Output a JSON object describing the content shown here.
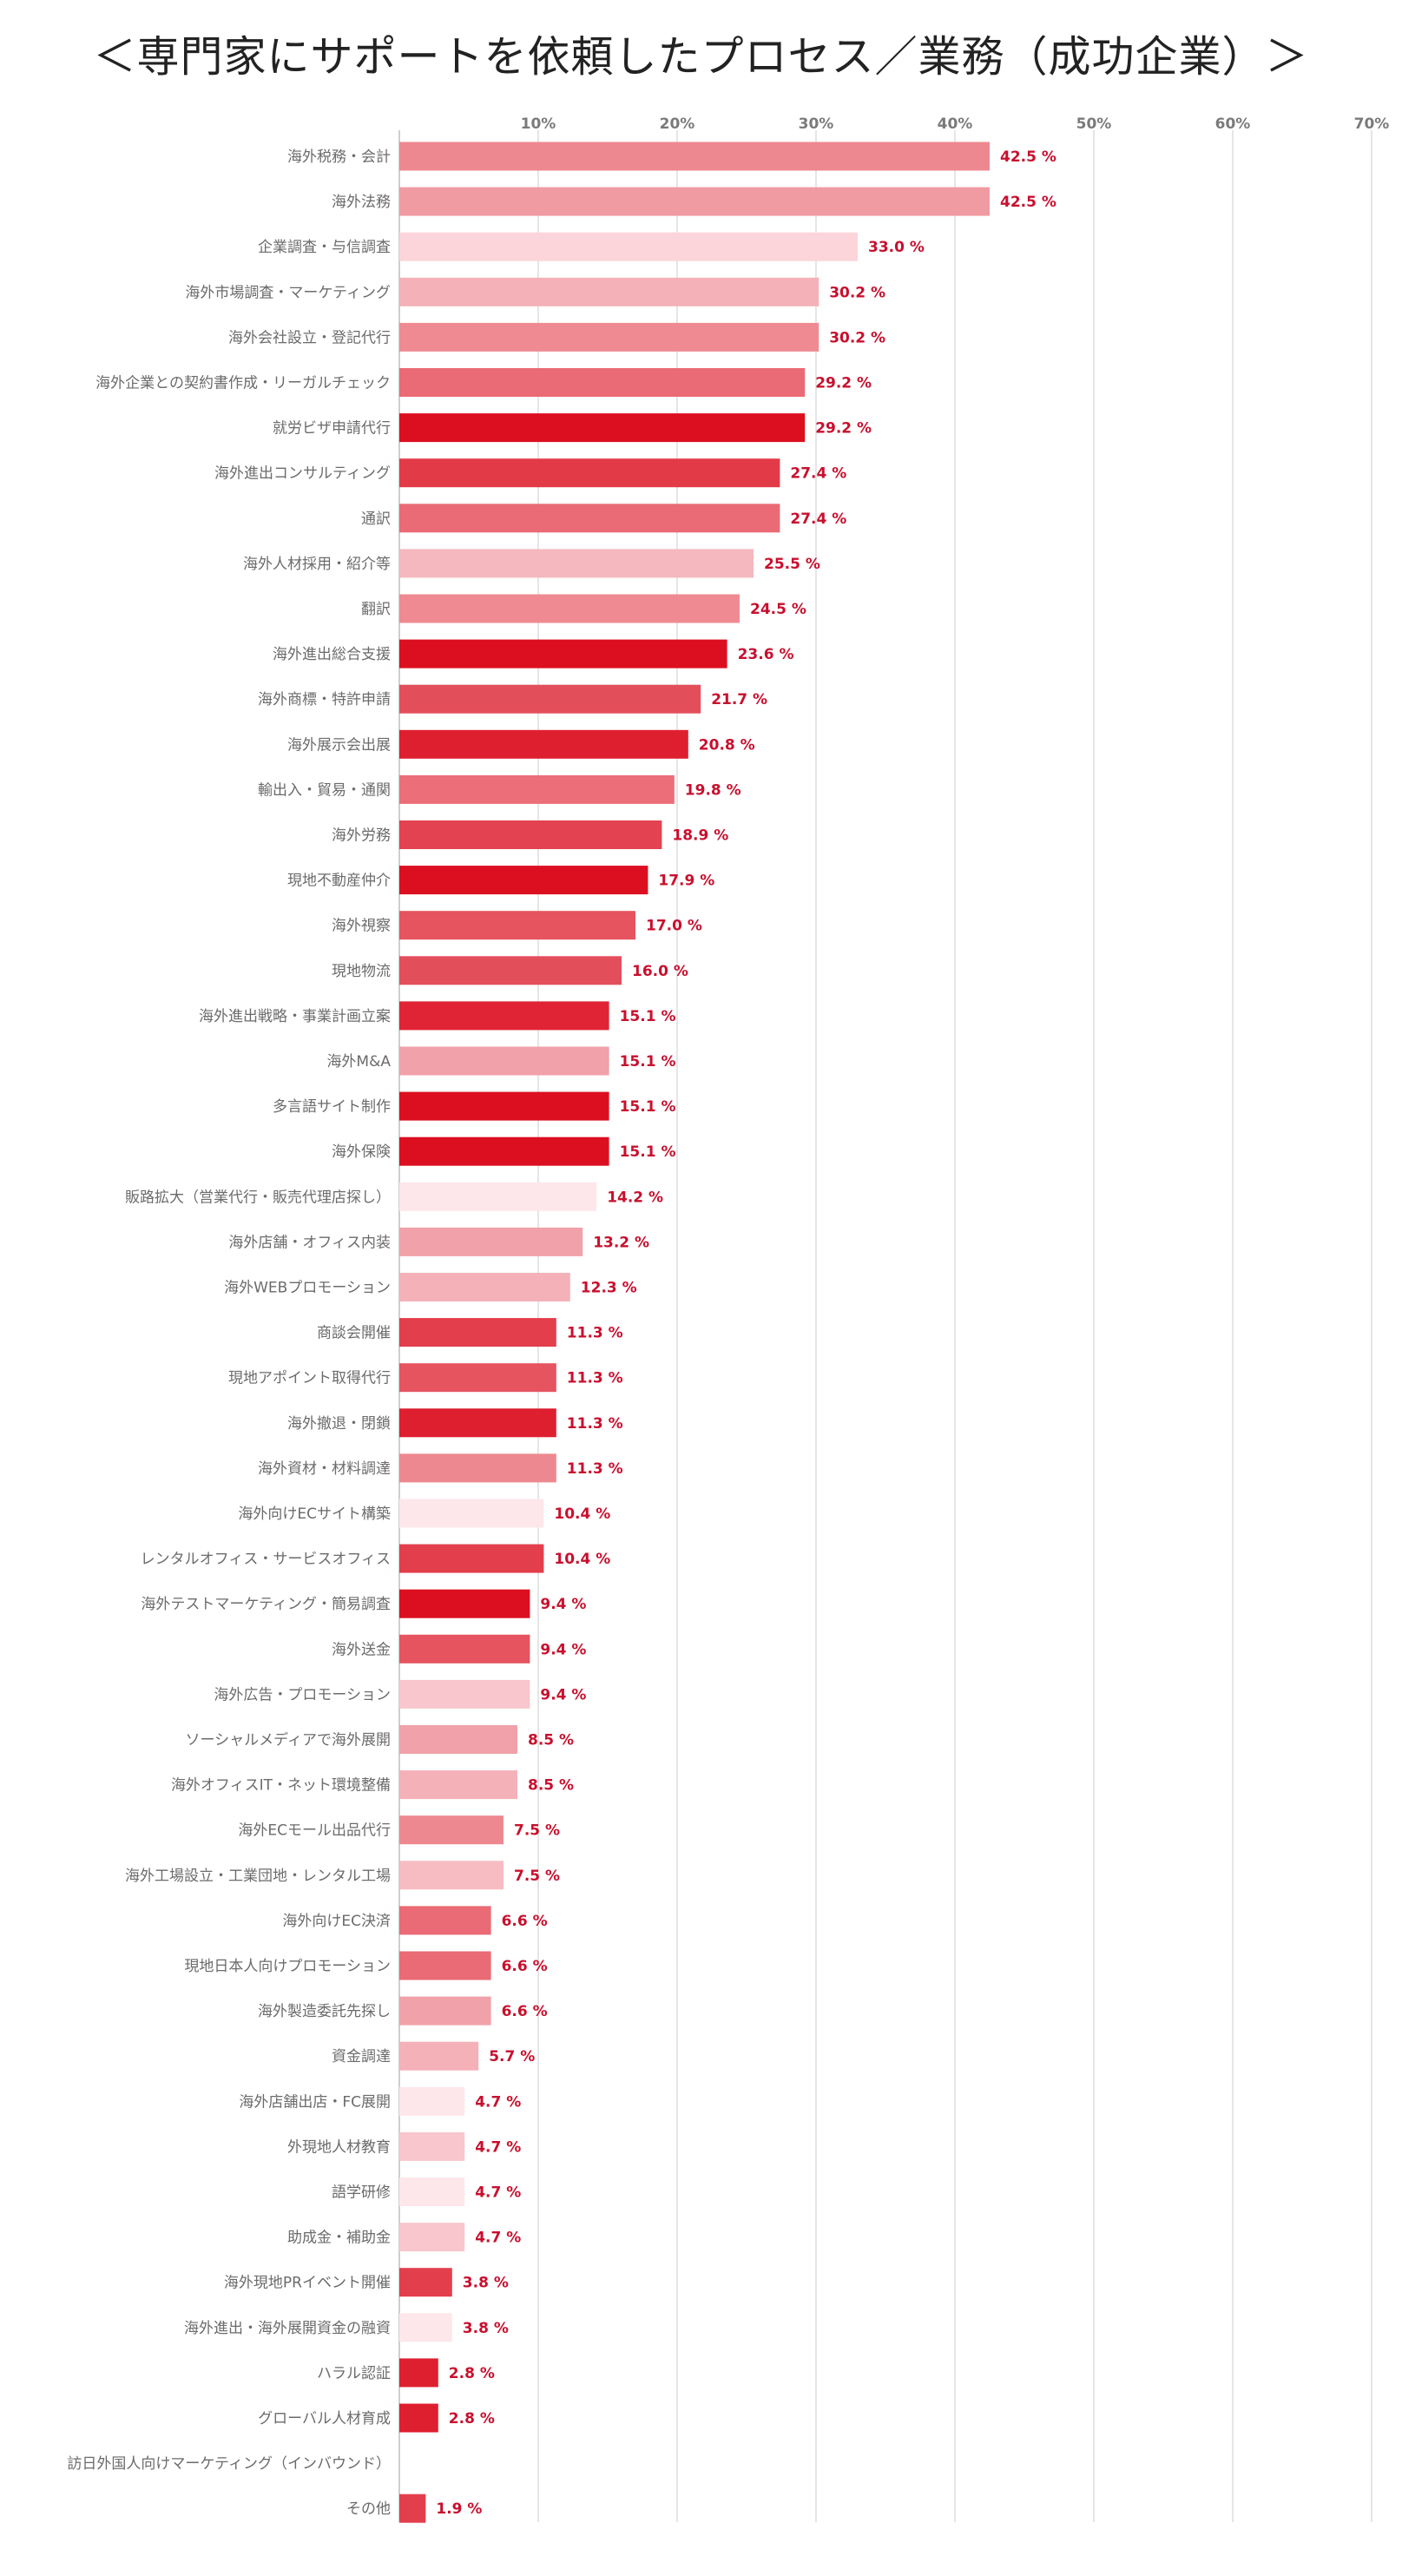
{
  "chart_data": {
    "type": "bar",
    "orientation": "horizontal",
    "title": "＜専門家にサポートを依頼したプロセス／業務（成功企業）＞",
    "value_suffix": " %",
    "xlim": [
      0,
      70
    ],
    "xticks": [
      "10%",
      "20%",
      "30%",
      "40%",
      "50%",
      "60%",
      "70%"
    ],
    "xtick_values": [
      10,
      20,
      30,
      40,
      50,
      60,
      70
    ],
    "grid": "vertical",
    "categories": [
      "海外税務・会計",
      "海外法務",
      "企業調査・与信調査",
      "海外市場調査・マーケティング",
      "海外会社設立・登記代行",
      "海外企業との契約書作成・リーガルチェック",
      "就労ビザ申請代行",
      "海外進出コンサルティング",
      "通訳",
      "海外人材採用・紹介等",
      "翻訳",
      "海外進出総合支援",
      "海外商標・特許申請",
      "海外展示会出展",
      "輸出入・貿易・通関",
      "海外労務",
      "現地不動産仲介",
      "海外視察",
      "現地物流",
      "海外進出戦略・事業計画立案",
      "海外M&A",
      "多言語サイト制作",
      "海外保険",
      "販路拡大（営業代行・販売代理店探し）",
      "海外店舗・オフィス内装",
      "海外WEBプロモーション",
      "商談会開催",
      "現地アポイント取得代行",
      "海外撤退・閉鎖",
      "海外資材・材料調達",
      "海外向けECサイト構築",
      "レンタルオフィス・サービスオフィス",
      "海外テストマーケティング・簡易調査",
      "海外送金",
      "海外広告・プロモーション",
      "ソーシャルメディアで海外展開",
      "海外オフィスIT・ネット環境整備",
      "海外ECモール出品代行",
      "海外工場設立・工業団地・レンタル工場",
      "海外向けEC決済",
      "現地日本人向けプロモーション",
      "海外製造委託先探し",
      "資金調達",
      "海外店舗出店・FC展開",
      "外現地人材教育",
      "語学研修",
      "助成金・補助金",
      "海外現地PRイベント開催",
      "海外進出・海外展開資金の融資",
      "ハラル認証",
      "グローバル人材育成",
      "訪日外国人向けマーケティング（インバウンド）",
      "その他"
    ],
    "values": [
      42.5,
      42.5,
      33.0,
      30.2,
      30.2,
      29.2,
      29.2,
      27.4,
      27.4,
      25.5,
      24.5,
      23.6,
      21.7,
      20.8,
      19.8,
      18.9,
      17.9,
      17.0,
      16.0,
      15.1,
      15.1,
      15.1,
      15.1,
      14.2,
      13.2,
      12.3,
      11.3,
      11.3,
      11.3,
      11.3,
      10.4,
      10.4,
      9.4,
      9.4,
      9.4,
      8.5,
      8.5,
      7.5,
      7.5,
      6.6,
      6.6,
      6.6,
      5.7,
      4.7,
      4.7,
      4.7,
      4.7,
      3.8,
      3.8,
      2.8,
      2.8,
      null,
      1.9
    ],
    "value_labels": [
      "42.5 %",
      "42.5 %",
      "33.0 %",
      "30.2 %",
      "30.2 %",
      "29.2 %",
      "29.2 %",
      "27.4 %",
      "27.4 %",
      "25.5 %",
      "24.5 %",
      "23.6 %",
      "21.7 %",
      "20.8 %",
      "19.8 %",
      "18.9 %",
      "17.9 %",
      "17.0 %",
      "16.0 %",
      "15.1 %",
      "15.1 %",
      "15.1 %",
      "15.1 %",
      "14.2 %",
      "13.2 %",
      "12.3 %",
      "11.3 %",
      "11.3 %",
      "11.3 %",
      "11.3 %",
      "10.4 %",
      "10.4 %",
      "9.4 %",
      "9.4 %",
      "9.4 %",
      "8.5 %",
      "8.5 %",
      "7.5 %",
      "7.5 %",
      "6.6 %",
      "6.6 %",
      "6.6 %",
      "5.7 %",
      "4.7 %",
      "4.7 %",
      "4.7 %",
      "4.7 %",
      "3.8 %",
      "3.8 %",
      "2.8 %",
      "2.8 %",
      "",
      "1.9 %"
    ],
    "bar_colors": [
      "#ee8890",
      "#f09aa2",
      "#fbd5da",
      "#f4b1b8",
      "#ef8a92",
      "#ea6a75",
      "#dc0f20",
      "#e33a48",
      "#ea6a75",
      "#f4b8be",
      "#ef8a92",
      "#dc0f20",
      "#e34e5b",
      "#de1f30",
      "#eb6e79",
      "#e34250",
      "#dc0f20",
      "#e5545f",
      "#e34e5b",
      "#e02436",
      "#f1a1a9",
      "#dc0f20",
      "#dc0f20",
      "#fde7ea",
      "#f1a1a9",
      "#f4b1b8",
      "#e33e4c",
      "#e5545f",
      "#de1f30",
      "#ee8890",
      "#fde7ea",
      "#e33e4c",
      "#dc0f20",
      "#e5545f",
      "#f8c6cc",
      "#f1a1a9",
      "#f4b1b8",
      "#ee8890",
      "#f6bcc2",
      "#ea6a75",
      "#ea6a75",
      "#f1a1a9",
      "#f4b1b8",
      "#fde7ea",
      "#f8c6cc",
      "#fde7ea",
      "#f8c6cc",
      "#e33e4c",
      "#fde7ea",
      "#de1f30",
      "#de1f30",
      "#ffffff",
      "#e33e4c"
    ],
    "value_label_color": "#c8102e",
    "gridline_color": "#d4d4d4"
  }
}
